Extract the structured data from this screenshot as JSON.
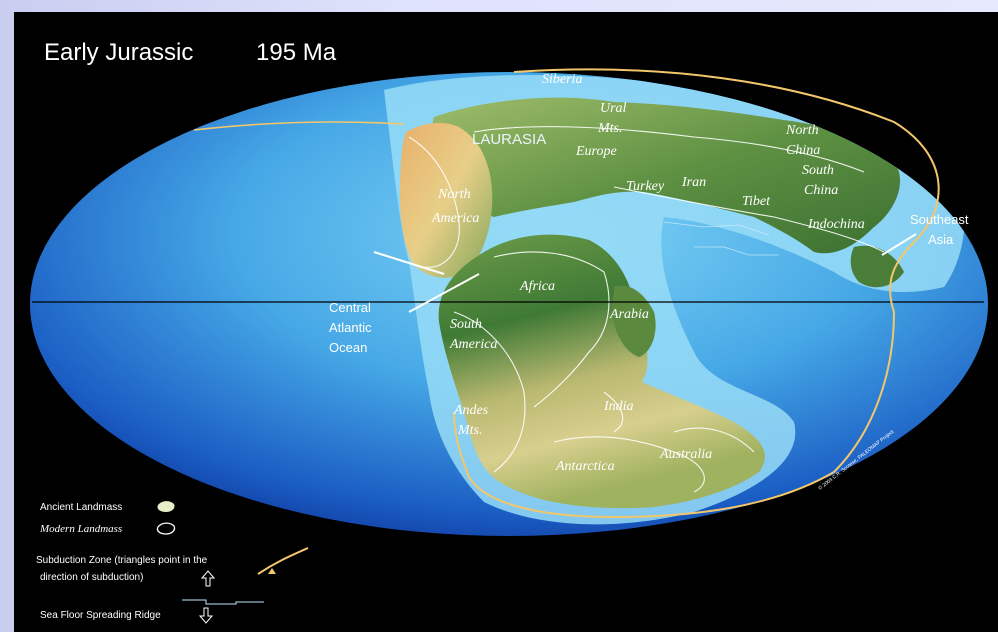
{
  "map": {
    "title": "Early Jurassic",
    "age": "195 Ma",
    "labels": {
      "siberia": "Siberia",
      "ural_mts": [
        "Ural",
        "Mts."
      ],
      "laurasia": "LAURASIA",
      "europe": "Europe",
      "north_china": [
        "North",
        "China"
      ],
      "south_china": [
        "South",
        "China"
      ],
      "turkey": "Turkey",
      "iran": "Iran",
      "tibet": "Tibet",
      "indochina": "Indochina",
      "southeast_asia": [
        "Southeast",
        "Asia"
      ],
      "north_america": [
        "North",
        "America"
      ],
      "africa": "Africa",
      "arabia": "Arabia",
      "central_atlantic": [
        "Central",
        "Atlantic",
        "Ocean"
      ],
      "south_america": [
        "South",
        "America"
      ],
      "andes_mts": [
        "Andes",
        "Mts."
      ],
      "india": "India",
      "antarctica": "Antarctica",
      "australia": "Australia"
    },
    "credit": "© 2003 C.R. Scotese, PALEOMAP Project",
    "legend": {
      "ancient": "Ancient Landmass",
      "modern": "Modern Landmass",
      "subduction": [
        "Subduction Zone  (triangles point in the",
        "direction of subduction)"
      ],
      "ridge": "Sea Floor Spreading Ridge"
    },
    "colors": {
      "ocean_deep": "#0c2f9a",
      "ocean_light": "#5ec4f0",
      "shelf": "#8fd8f6",
      "land": "#4f8a3a",
      "subduction": "#f2c76b"
    }
  }
}
